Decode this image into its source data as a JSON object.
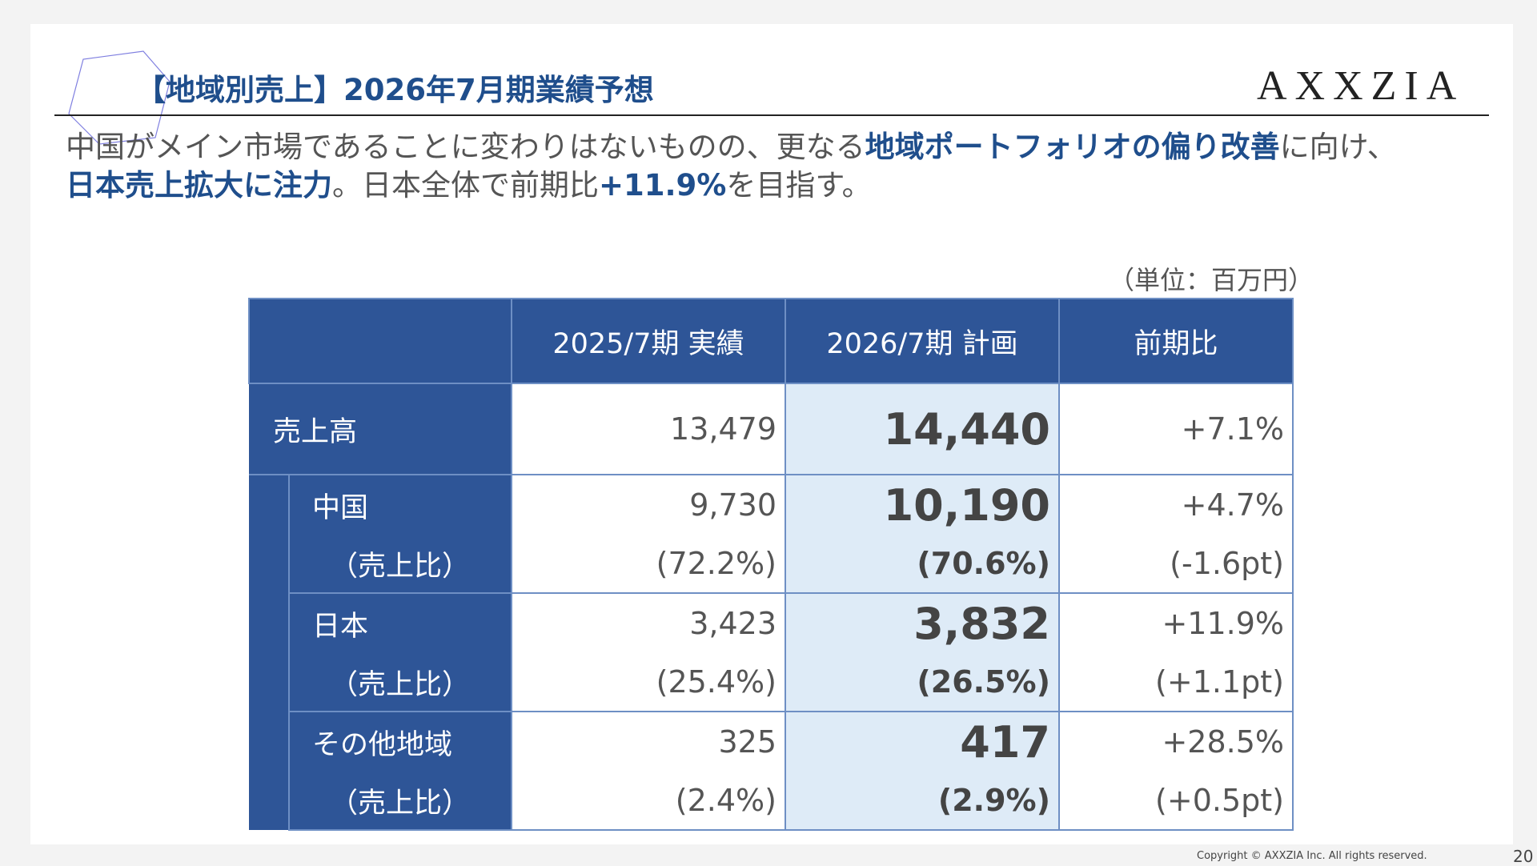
{
  "header": {
    "title": "【地域別売上】2026年7月期業績予想",
    "logo_text": "AXXZIA"
  },
  "lead": {
    "line1_a": "中国がメイン市場であることに変わりはないものの、更なる",
    "line1_hl": "地域ポートフォリオの偏り改善",
    "line1_b": "に向け、",
    "line2_hl": "日本売上拡大に注力",
    "line2_a": "。日本全体で前期比",
    "line2_hl2": "+11.9%",
    "line2_b": "を目指す。"
  },
  "unit_label": "（単位：百万円）",
  "table": {
    "headers": [
      "",
      "2025/7期  実績",
      "2026/7期  計画",
      "前期比"
    ],
    "total": {
      "label": "売上高",
      "actual": "13,479",
      "plan": "14,440",
      "yoy": "+7.1%"
    },
    "regions": [
      {
        "label": "中国",
        "actual": "9,730",
        "plan": "10,190",
        "yoy": "+4.7%",
        "ratio_label": "（売上比）",
        "ratio_actual": "(72.2%)",
        "ratio_plan": "(70.6%)",
        "ratio_yoy": "(-1.6pt)"
      },
      {
        "label": "日本",
        "actual": "3,423",
        "plan": "3,832",
        "yoy": "+11.9%",
        "ratio_label": "（売上比）",
        "ratio_actual": "(25.4%)",
        "ratio_plan": "(26.5%)",
        "ratio_yoy": "(+1.1pt)"
      },
      {
        "label": "その他地域",
        "actual": "325",
        "plan": "417",
        "yoy": "+28.5%",
        "ratio_label": "（売上比）",
        "ratio_actual": "(2.4%)",
        "ratio_plan": "(2.9%)",
        "ratio_yoy": "(+0.5pt)"
      }
    ]
  },
  "footer": {
    "copyright": "Copyright © AXXZIA Inc. All rights reserved.",
    "page_number": "20"
  },
  "colors": {
    "primary": "#2e5597",
    "title": "#1f4e8c",
    "plan_bg": "#deebf7"
  }
}
